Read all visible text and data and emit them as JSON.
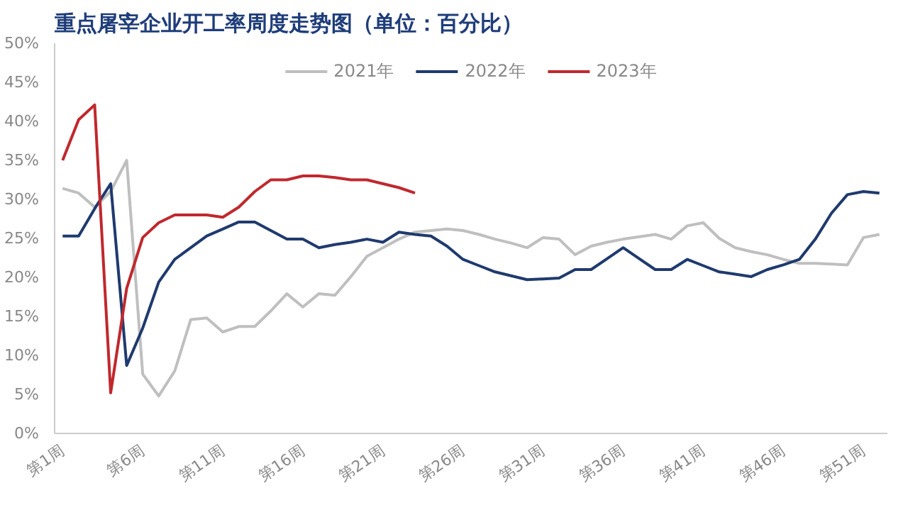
{
  "chart_data": {
    "type": "line",
    "title": "重点屠宰企业开工率周度走势图（单位：百分比）",
    "categories": [
      "第1周",
      null,
      null,
      null,
      null,
      "第6周",
      null,
      null,
      null,
      null,
      "第11周",
      null,
      null,
      null,
      null,
      "第16周",
      null,
      null,
      null,
      null,
      "第21周",
      null,
      null,
      null,
      null,
      "第26周",
      null,
      null,
      null,
      null,
      "第31周",
      null,
      null,
      null,
      null,
      "第36周",
      null,
      null,
      null,
      null,
      "第41周",
      null,
      null,
      null,
      null,
      "第46周",
      null,
      null,
      null,
      null,
      "第51周",
      null
    ],
    "ylim": [
      0,
      50
    ],
    "yticks": [
      {
        "value": 0,
        "label": "0%"
      },
      {
        "value": 5,
        "label": "5%"
      },
      {
        "value": 10,
        "label": "10%"
      },
      {
        "value": 15,
        "label": "15%"
      },
      {
        "value": 20,
        "label": "20%"
      },
      {
        "value": 25,
        "label": "25%"
      },
      {
        "value": 30,
        "label": "30%"
      },
      {
        "value": 35,
        "label": "35%"
      },
      {
        "value": 40,
        "label": "40%"
      },
      {
        "value": 45,
        "label": "45%"
      },
      {
        "value": 50,
        "label": "50%"
      }
    ],
    "grid": false,
    "legend": "top",
    "marker": "none",
    "line_style": "solid",
    "series": [
      {
        "name": "2021年",
        "color": "#bfbfbf",
        "values": [
          31.4,
          30.8,
          29,
          31,
          35,
          7.6,
          4.8,
          8,
          14.6,
          14.8,
          13,
          13.7,
          13.7,
          15.7,
          17.9,
          16.2,
          17.9,
          17.7,
          20.1,
          22.7,
          23.8,
          24.9,
          25.8,
          26,
          26.2,
          26,
          25.5,
          24.9,
          24.4,
          23.8,
          25.1,
          24.9,
          22.9,
          24,
          24.5,
          24.9,
          25.2,
          25.5,
          24.9,
          26.6,
          27,
          25,
          23.8,
          23.3,
          22.9,
          22.3,
          21.8,
          21.8,
          21.7,
          21.6,
          25.1,
          25.5
        ]
      },
      {
        "name": "2022年",
        "color": "#1f3a6e",
        "values": [
          25.3,
          25.3,
          28.8,
          32,
          8.7,
          13.5,
          19.4,
          22.3,
          23.8,
          25.3,
          26.2,
          27.1,
          27.1,
          26,
          24.9,
          24.9,
          23.8,
          24.2,
          24.5,
          24.9,
          24.5,
          25.8,
          25.5,
          25.3,
          24,
          22.3,
          21.5,
          20.7,
          20.2,
          19.7,
          19.8,
          19.9,
          21,
          21,
          22.4,
          23.8,
          22.4,
          21,
          21,
          22.3,
          21.5,
          20.7,
          20.4,
          20.1,
          21,
          21.6,
          22.3,
          24.9,
          28.2,
          30.6,
          31,
          30.8
        ]
      },
      {
        "name": "2023年",
        "color": "#c0282d",
        "values": [
          35,
          40.2,
          42.1,
          5.2,
          18.6,
          25.1,
          27,
          28,
          28,
          28,
          27.7,
          29,
          31,
          32.5,
          32.5,
          33,
          33,
          32.8,
          32.5,
          32.5,
          32,
          31.5,
          30.8,
          null,
          null,
          null,
          null,
          null,
          null,
          null,
          null,
          null,
          null,
          null,
          null,
          null,
          null,
          null,
          null,
          null,
          null,
          null,
          null,
          null,
          null,
          null,
          null,
          null,
          null,
          null,
          null,
          null
        ]
      }
    ]
  }
}
